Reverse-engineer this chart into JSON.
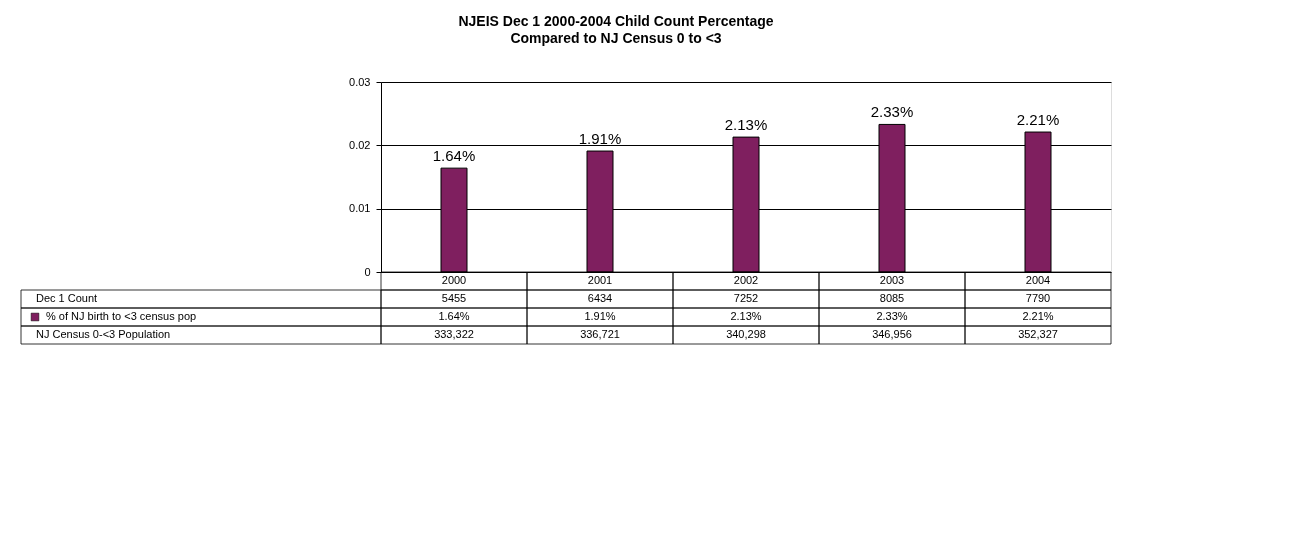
{
  "chart_data": {
    "type": "bar",
    "title": "NJEIS Dec 1 2000-2004 Child Count Percentage",
    "subtitle": "Compared to NJ Census 0 to <3",
    "categories": [
      "2000",
      "2001",
      "2002",
      "2003",
      "2004"
    ],
    "series": [
      {
        "name": "% of NJ birth to <3 census pop",
        "color": "#7f1f5f",
        "values": [
          0.0164,
          0.0191,
          0.0213,
          0.0233,
          0.0221
        ],
        "value_labels": [
          "1.64%",
          "1.91%",
          "2.13%",
          "2.33%",
          "2.21%"
        ]
      }
    ],
    "ylim": [
      0,
      0.03
    ],
    "yticks": [
      0,
      0.01,
      0.02,
      0.03
    ],
    "grid": "y",
    "legend": "bottom",
    "annotations": [
      "Dec 1 Count",
      "5455",
      "6434",
      "7252",
      "8085",
      "7790",
      "NJ Census 0-<3 Population",
      "333,322",
      "336,721",
      "340,298",
      "346,956",
      "352,327"
    ]
  }
}
